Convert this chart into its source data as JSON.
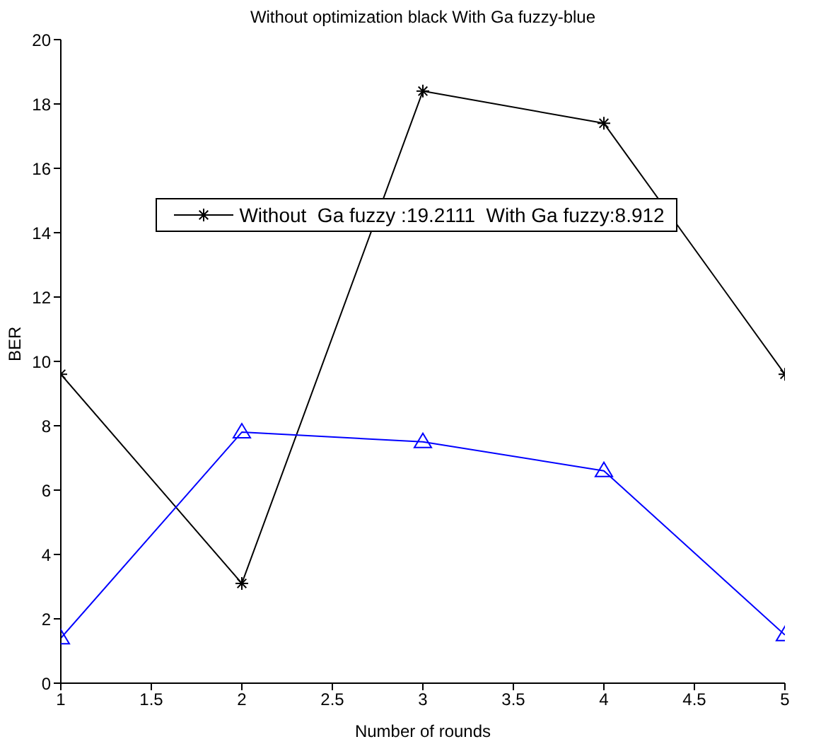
{
  "chart_data": {
    "type": "line",
    "title": "Without optimization black With Ga fuzzy-blue",
    "xlabel": "Number of rounds",
    "ylabel": "BER",
    "x": [
      1,
      2,
      3,
      4,
      5
    ],
    "series": [
      {
        "name": "Without  Ga fuzzy :19.2111  With Ga fuzzy:8.912",
        "color": "#000000",
        "marker": "cross",
        "values": [
          9.6,
          3.1,
          18.4,
          17.4,
          9.6
        ]
      },
      {
        "color": "#0000ff",
        "marker": "triangle",
        "values": [
          1.4,
          7.8,
          7.5,
          6.6,
          1.5
        ]
      }
    ],
    "xlim": [
      1,
      5
    ],
    "xticks": [
      1,
      1.5,
      2,
      2.5,
      3,
      3.5,
      4,
      4.5,
      5
    ],
    "ylim": [
      0,
      20
    ],
    "yticks": [
      0,
      2,
      4,
      6,
      8,
      10,
      12,
      14,
      16,
      18,
      20
    ],
    "grid": false,
    "legend": "top",
    "line_style": "solid"
  }
}
